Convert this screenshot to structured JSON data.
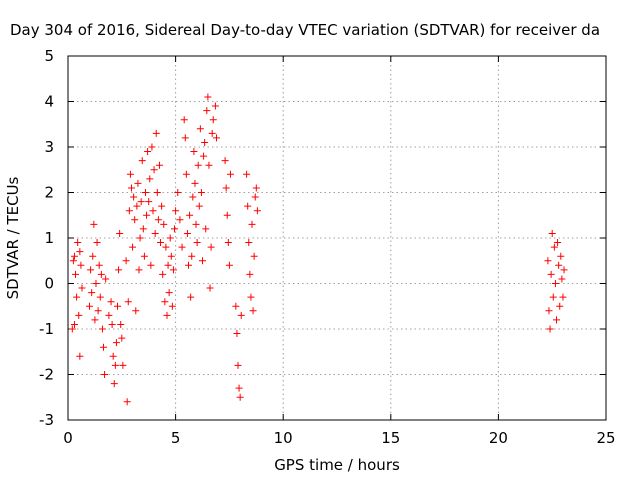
{
  "chart_data": {
    "type": "scatter",
    "title": "Day 304 of 2016, Sidereal Day-to-day VTEC variation (SDTVAR) for receiver da",
    "xlabel": "GPS time / hours",
    "ylabel": "SDTVAR / TECUs",
    "xlim": [
      0,
      25
    ],
    "ylim": [
      -3,
      5
    ],
    "xticks": [
      "0",
      "5",
      "10",
      "15",
      "20",
      "25"
    ],
    "yticks": [
      "-3",
      "-2",
      "-1",
      "0",
      "1",
      "2",
      "3",
      "4",
      "5"
    ],
    "grid": true,
    "marker": "+",
    "color": "#ff0000",
    "series": [
      {
        "points": [
          [
            0.25,
            0.5
          ],
          [
            0.3,
            0.6
          ],
          [
            0.35,
            0.2
          ],
          [
            0.4,
            -0.3
          ],
          [
            0.45,
            0.9
          ],
          [
            0.5,
            -0.7
          ],
          [
            0.55,
            0.7
          ],
          [
            0.55,
            -1.6
          ],
          [
            0.6,
            0.4
          ],
          [
            0.65,
            -0.1
          ],
          [
            0.2,
            -1.0
          ],
          [
            0.3,
            -0.9
          ],
          [
            1.0,
            -0.5
          ],
          [
            1.05,
            0.3
          ],
          [
            1.1,
            -0.2
          ],
          [
            1.15,
            0.6
          ],
          [
            1.2,
            1.3
          ],
          [
            1.25,
            -0.8
          ],
          [
            1.3,
            0.0
          ],
          [
            1.35,
            0.9
          ],
          [
            1.4,
            -0.6
          ],
          [
            1.45,
            0.4
          ],
          [
            1.5,
            -0.3
          ],
          [
            1.55,
            0.2
          ],
          [
            1.6,
            -1.0
          ],
          [
            1.65,
            -1.4
          ],
          [
            1.7,
            -2.0
          ],
          [
            1.75,
            0.1
          ],
          [
            1.9,
            -0.7
          ],
          [
            2.0,
            -0.4
          ],
          [
            2.05,
            -0.9
          ],
          [
            2.1,
            -1.6
          ],
          [
            2.15,
            -2.2
          ],
          [
            2.2,
            -1.8
          ],
          [
            2.25,
            -1.3
          ],
          [
            2.3,
            -0.5
          ],
          [
            2.35,
            0.3
          ],
          [
            2.4,
            1.1
          ],
          [
            2.45,
            -0.9
          ],
          [
            2.5,
            -1.2
          ],
          [
            2.55,
            -1.8
          ],
          [
            2.7,
            0.5
          ],
          [
            2.75,
            -2.6
          ],
          [
            2.8,
            -0.4
          ],
          [
            2.85,
            1.6
          ],
          [
            2.9,
            2.4
          ],
          [
            2.95,
            2.1
          ],
          [
            3.0,
            0.8
          ],
          [
            3.05,
            1.9
          ],
          [
            3.1,
            1.4
          ],
          [
            3.15,
            -0.6
          ],
          [
            3.2,
            1.7
          ],
          [
            3.25,
            2.2
          ],
          [
            3.3,
            0.3
          ],
          [
            3.35,
            1.0
          ],
          [
            3.4,
            1.8
          ],
          [
            3.45,
            2.7
          ],
          [
            3.5,
            1.2
          ],
          [
            3.55,
            0.6
          ],
          [
            3.6,
            2.0
          ],
          [
            3.65,
            1.5
          ],
          [
            3.7,
            2.9
          ],
          [
            3.75,
            1.8
          ],
          [
            3.8,
            2.3
          ],
          [
            3.85,
            0.4
          ],
          [
            3.9,
            3.0
          ],
          [
            3.95,
            1.6
          ],
          [
            4.0,
            2.5
          ],
          [
            4.05,
            1.1
          ],
          [
            4.1,
            3.3
          ],
          [
            4.15,
            2.0
          ],
          [
            4.2,
            1.4
          ],
          [
            4.25,
            2.6
          ],
          [
            4.3,
            0.9
          ],
          [
            4.35,
            1.7
          ],
          [
            4.4,
            0.2
          ],
          [
            4.45,
            1.3
          ],
          [
            4.5,
            -0.4
          ],
          [
            4.55,
            0.8
          ],
          [
            4.6,
            -0.7
          ],
          [
            4.65,
            0.4
          ],
          [
            4.7,
            -0.2
          ],
          [
            4.75,
            1.0
          ],
          [
            4.8,
            0.6
          ],
          [
            4.85,
            -0.5
          ],
          [
            4.9,
            0.3
          ],
          [
            4.95,
            1.2
          ],
          [
            5.0,
            1.6
          ],
          [
            5.1,
            2.0
          ],
          [
            5.2,
            1.4
          ],
          [
            5.3,
            0.8
          ],
          [
            5.4,
            3.6
          ],
          [
            5.45,
            3.2
          ],
          [
            5.5,
            2.4
          ],
          [
            5.55,
            1.1
          ],
          [
            5.6,
            0.4
          ],
          [
            5.65,
            1.5
          ],
          [
            5.7,
            -0.3
          ],
          [
            5.75,
            0.6
          ],
          [
            5.8,
            1.9
          ],
          [
            5.85,
            2.9
          ],
          [
            5.9,
            2.2
          ],
          [
            5.95,
            1.3
          ],
          [
            6.0,
            0.9
          ],
          [
            6.05,
            2.6
          ],
          [
            6.1,
            1.7
          ],
          [
            6.15,
            3.4
          ],
          [
            6.2,
            2.0
          ],
          [
            6.25,
            0.5
          ],
          [
            6.3,
            2.8
          ],
          [
            6.35,
            3.1
          ],
          [
            6.4,
            1.2
          ],
          [
            6.45,
            3.8
          ],
          [
            6.5,
            4.1
          ],
          [
            6.55,
            2.6
          ],
          [
            6.6,
            -0.1
          ],
          [
            6.65,
            0.8
          ],
          [
            6.7,
            3.3
          ],
          [
            6.75,
            3.6
          ],
          [
            6.85,
            3.9
          ],
          [
            6.9,
            3.2
          ],
          [
            7.3,
            2.7
          ],
          [
            7.35,
            2.1
          ],
          [
            7.4,
            1.5
          ],
          [
            7.45,
            0.9
          ],
          [
            7.5,
            0.4
          ],
          [
            7.55,
            2.4
          ],
          [
            7.8,
            -0.5
          ],
          [
            7.85,
            -1.1
          ],
          [
            7.9,
            -1.8
          ],
          [
            7.95,
            -2.3
          ],
          [
            8.0,
            -2.5
          ],
          [
            8.05,
            -0.7
          ],
          [
            8.3,
            2.4
          ],
          [
            8.35,
            1.7
          ],
          [
            8.4,
            0.9
          ],
          [
            8.45,
            0.2
          ],
          [
            8.5,
            -0.3
          ],
          [
            8.55,
            1.3
          ],
          [
            8.6,
            -0.6
          ],
          [
            8.65,
            0.6
          ],
          [
            8.7,
            1.9
          ],
          [
            8.75,
            2.1
          ],
          [
            8.8,
            1.6
          ],
          [
            22.3,
            0.5
          ],
          [
            22.35,
            -0.6
          ],
          [
            22.4,
            -1.0
          ],
          [
            22.45,
            0.2
          ],
          [
            22.5,
            1.1
          ],
          [
            22.55,
            -0.3
          ],
          [
            22.6,
            0.8
          ],
          [
            22.65,
            0.0
          ],
          [
            22.7,
            -0.8
          ],
          [
            22.75,
            0.9
          ],
          [
            22.8,
            0.4
          ],
          [
            22.85,
            -0.5
          ],
          [
            22.9,
            0.6
          ],
          [
            22.95,
            0.1
          ],
          [
            23.0,
            -0.3
          ],
          [
            23.05,
            0.3
          ]
        ]
      }
    ]
  }
}
